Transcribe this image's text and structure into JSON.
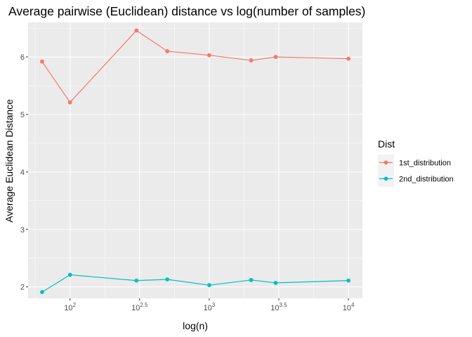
{
  "chart_data": {
    "type": "line",
    "title": "Average pairwise (Euclidean) distance vs log(number of samples)",
    "xlabel": "log(n)",
    "ylabel": "Average Euclidean Distance",
    "x_scale": "log10",
    "x": [
      63,
      100,
      300,
      500,
      1000,
      2000,
      3000,
      10000
    ],
    "xlim": [
      50,
      12600
    ],
    "ylim": [
      1.8,
      6.6
    ],
    "x_ticks": [
      {
        "value": 100,
        "base": "10",
        "exp": "2"
      },
      {
        "value": 316.23,
        "base": "10",
        "exp": "2.5"
      },
      {
        "value": 1000,
        "base": "10",
        "exp": "3"
      },
      {
        "value": 3162.28,
        "base": "10",
        "exp": "3.5"
      },
      {
        "value": 10000,
        "base": "10",
        "exp": "4"
      }
    ],
    "y_ticks": [
      2,
      3,
      4,
      5,
      6
    ],
    "grid": true,
    "legend": {
      "title": "Dist",
      "position": "right"
    },
    "series": [
      {
        "name": "1st_distribution",
        "color": "#f8766d",
        "values": [
          5.92,
          5.21,
          6.46,
          6.1,
          6.03,
          5.94,
          6.0,
          5.97
        ]
      },
      {
        "name": "2nd_distribution",
        "color": "#00bfc4",
        "values": [
          1.91,
          2.21,
          2.11,
          2.13,
          2.03,
          2.12,
          2.07,
          2.11
        ]
      }
    ]
  }
}
